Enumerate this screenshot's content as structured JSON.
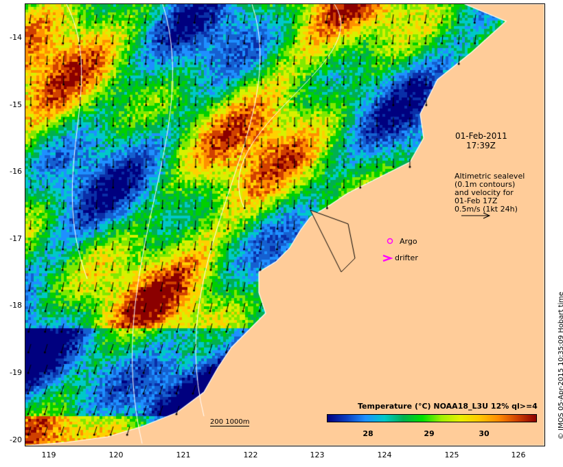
{
  "map": {
    "land_color": "#FFCC99",
    "lat_labels": [
      "-14",
      "-15",
      "-16",
      "-17",
      "-18",
      "-19",
      "-20"
    ],
    "lon_labels": [
      "119",
      "120",
      "121",
      "122",
      "123",
      "124",
      "125",
      "126"
    ]
  },
  "annotations": {
    "date": "01-Feb-2011",
    "time": "17:39Z",
    "altimetry_lines": [
      "Altimetric sealevel",
      "(0.1m contours)",
      "and velocity for",
      "01-Feb 17Z",
      "0.5m/s (1kt 24h)"
    ],
    "argo_label": "Argo",
    "drifter_label": "drifter",
    "scale_label": "200  1000m"
  },
  "legend": {
    "title": "Temperature (°C) NOAA18_L3U 12% ql>=4",
    "ticks": [
      "28",
      "29",
      "30"
    ]
  },
  "credit": "© IMOS 05-Apr-2015 10:35:09 Hobart time"
}
